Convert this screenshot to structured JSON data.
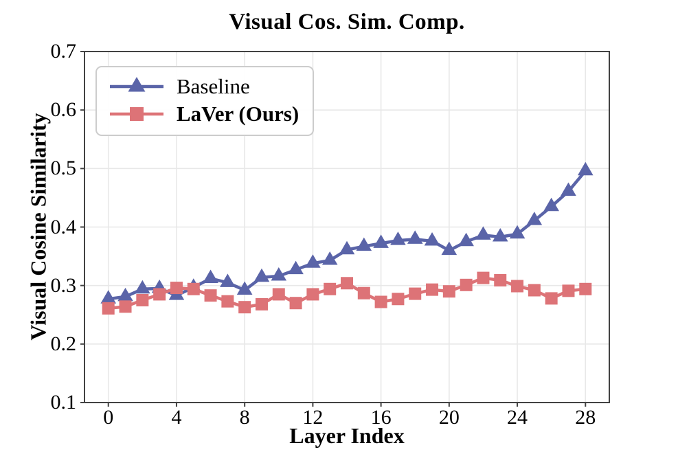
{
  "style": {
    "baseline_color": "#5a64a8",
    "laver_color": "#dd7377",
    "grid_color": "#e8e8e8",
    "spine_color": "#424242",
    "tick_color": "#424242",
    "text_color": "#000000",
    "legend_border_color": "#cccccc"
  },
  "chart_data": {
    "type": "line",
    "title": "Visual Cos. Sim. Comp.",
    "xlabel": "Layer Index",
    "ylabel": "Visual Cosine Similarity",
    "xlim": [
      -1.4,
      29.4
    ],
    "ylim": [
      0.1,
      0.7
    ],
    "grid": true,
    "legend_position": "upper left",
    "x_ticks": [
      0,
      4,
      8,
      12,
      16,
      20,
      24,
      28
    ],
    "x_tick_labels": [
      "0",
      "4",
      "8",
      "12",
      "16",
      "20",
      "24",
      "28"
    ],
    "y_ticks": [
      0.1,
      0.2,
      0.3,
      0.4,
      0.5,
      0.6,
      0.7
    ],
    "y_tick_labels": [
      "0.1",
      "0.2",
      "0.3",
      "0.4",
      "0.5",
      "0.6",
      "0.7"
    ],
    "x": [
      0,
      1,
      2,
      3,
      4,
      5,
      6,
      7,
      8,
      9,
      10,
      11,
      12,
      13,
      14,
      15,
      16,
      17,
      18,
      19,
      20,
      21,
      22,
      23,
      24,
      25,
      26,
      27,
      28
    ],
    "series": [
      {
        "name": "Baseline",
        "marker": "triangle",
        "color": "#5a64a8",
        "label_bold": false,
        "values": [
          0.277,
          0.281,
          0.294,
          0.295,
          0.283,
          0.297,
          0.312,
          0.305,
          0.292,
          0.314,
          0.316,
          0.327,
          0.338,
          0.343,
          0.361,
          0.367,
          0.372,
          0.377,
          0.379,
          0.376,
          0.36,
          0.375,
          0.386,
          0.383,
          0.388,
          0.411,
          0.435,
          0.461,
          0.496
        ]
      },
      {
        "name": "LaVer (Ours)",
        "marker": "square",
        "color": "#dd7377",
        "label_bold": true,
        "values": [
          0.261,
          0.264,
          0.275,
          0.285,
          0.296,
          0.294,
          0.283,
          0.273,
          0.263,
          0.268,
          0.285,
          0.27,
          0.285,
          0.294,
          0.304,
          0.287,
          0.272,
          0.277,
          0.286,
          0.293,
          0.29,
          0.301,
          0.313,
          0.309,
          0.299,
          0.292,
          0.278,
          0.291,
          0.294
        ]
      }
    ]
  }
}
